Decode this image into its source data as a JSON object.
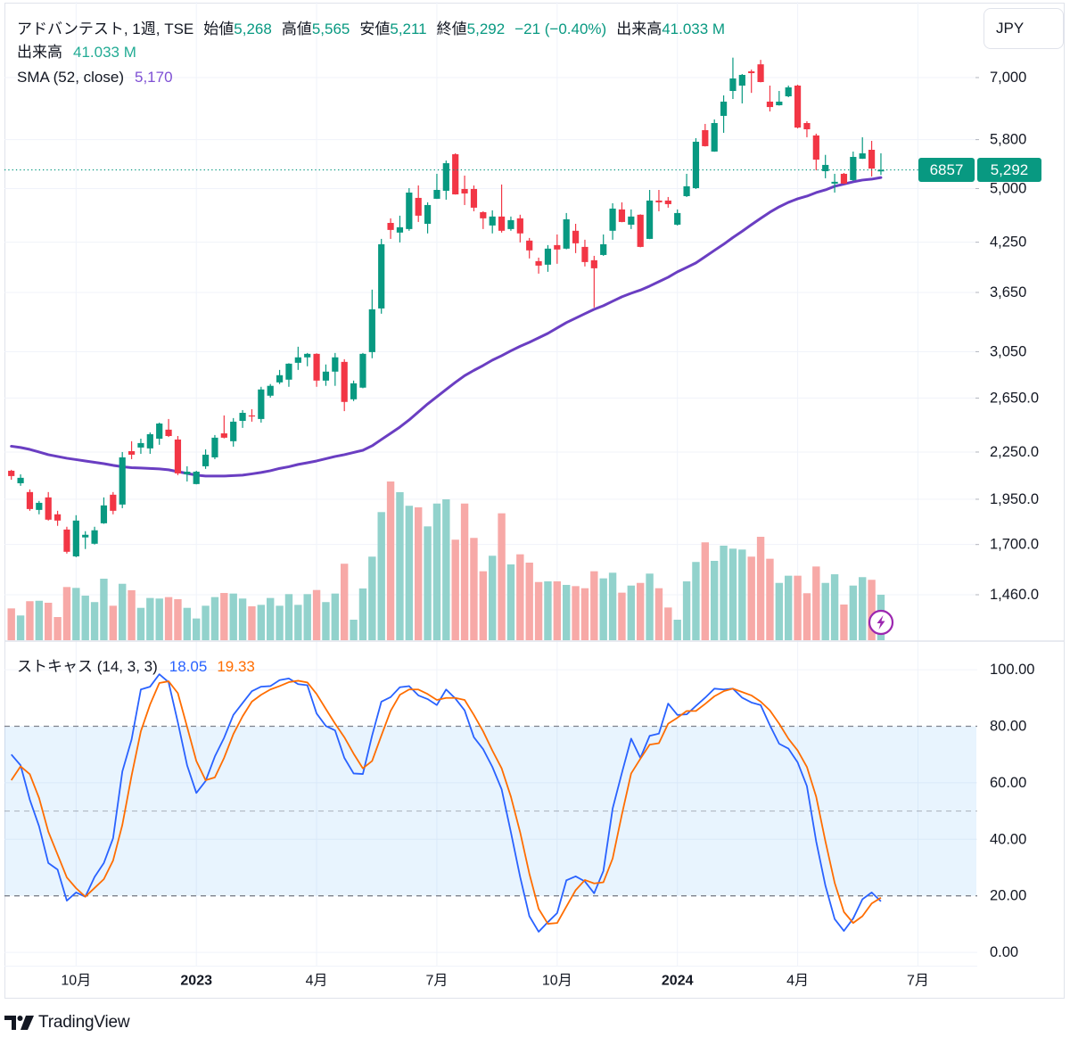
{
  "legend": {
    "title": "アドバンテスト, 1週, TSE",
    "ohlc": [
      {
        "label": "始値",
        "value": "5,268"
      },
      {
        "label": "高値",
        "value": "5,565"
      },
      {
        "label": "安値",
        "value": "5,211"
      },
      {
        "label": "終値",
        "value": "5,292"
      }
    ],
    "change": "−21 (−0.40%)",
    "volume_label": "出来高",
    "volume_value": "41.033 M"
  },
  "volume_legend": {
    "label": "出来高",
    "value": "41.033 M"
  },
  "sma_legend": {
    "label": "SMA (52, close)",
    "value": "5,170"
  },
  "stoch_legend": {
    "label": "ストキャス (14, 3, 3)",
    "k_value": "18.05",
    "d_value": "19.33"
  },
  "currency_button": {
    "label": "JPY"
  },
  "price_badges": {
    "symbol_code": "6857",
    "last_price": "5,292"
  },
  "branding": {
    "name": "TradingView",
    "icon": "tradingview-logo-icon"
  },
  "alert_icon": "lightning-icon",
  "colors": {
    "up": "#089981",
    "down": "#f23645",
    "volume_up": "#92d2cc",
    "volume_down": "#f7a9a7",
    "sma": "#6a3ec2",
    "stoch_k": "#2962ff",
    "stoch_d": "#ff6d00",
    "stoch_band": "#2196f3",
    "grid": "#f0f3fa",
    "band_line": "#787b86"
  },
  "chart_data": [
    {
      "type": "candlestick",
      "title": "アドバンテスト, 1週, TSE",
      "interval": "1週",
      "scale": "log",
      "grid": true,
      "price_ylim": [
        1272,
        8808
      ],
      "volume_ylim": [
        0,
        576
      ],
      "last_close": 5292,
      "y_ticks": [
        {
          "value": 7000,
          "label": "7,000"
        },
        {
          "value": 5800,
          "label": "5,800"
        },
        {
          "value": 5000,
          "label": "5,000"
        },
        {
          "value": 4250,
          "label": "4,250"
        },
        {
          "value": 3650,
          "label": "3,650"
        },
        {
          "value": 3050,
          "label": "3,050"
        },
        {
          "value": 2650,
          "label": "2,650.0"
        },
        {
          "value": 2250,
          "label": "2,250.0"
        },
        {
          "value": 1950,
          "label": "1,950.0"
        },
        {
          "value": 1700,
          "label": "1,700.0"
        },
        {
          "value": 1460,
          "label": "1,460.0"
        }
      ],
      "x_ticks": [
        {
          "label": "10月",
          "bar": 7,
          "bold": false
        },
        {
          "label": "2023",
          "bar": 20,
          "bold": true
        },
        {
          "label": "4月",
          "bar": 33,
          "bold": false
        },
        {
          "label": "7月",
          "bar": 46,
          "bold": false
        },
        {
          "label": "10月",
          "bar": 59,
          "bold": false
        },
        {
          "label": "2024",
          "bar": 72,
          "bold": true
        },
        {
          "label": "4月",
          "bar": 85,
          "bold": false
        },
        {
          "label": "7月",
          "bar": 98,
          "bold": false
        }
      ],
      "ohlc": [
        [
          2126,
          2132,
          2069,
          2092
        ],
        [
          2047,
          2103,
          2031,
          2081
        ],
        [
          1993,
          2009,
          1883,
          1893
        ],
        [
          1888,
          1940,
          1863,
          1929
        ],
        [
          1961,
          1993,
          1828,
          1833
        ],
        [
          1863,
          1883,
          1799,
          1828
        ],
        [
          1779,
          1794,
          1654,
          1663
        ],
        [
          1640,
          1858,
          1636,
          1828
        ],
        [
          1737,
          1770,
          1677,
          1751
        ],
        [
          1704,
          1794,
          1700,
          1775
        ],
        [
          1813,
          1961,
          1810,
          1914
        ],
        [
          1977,
          1993,
          1863,
          1883
        ],
        [
          1919,
          2250,
          1898,
          2214
        ],
        [
          2256,
          2325,
          2202,
          2232
        ],
        [
          2281,
          2343,
          2238,
          2312
        ],
        [
          2275,
          2388,
          2238,
          2375
        ],
        [
          2343,
          2460,
          2300,
          2453
        ],
        [
          2408,
          2487,
          2355,
          2362
        ],
        [
          2337,
          2362,
          2098,
          2109
        ],
        [
          2103,
          2155,
          2058,
          2120
        ],
        [
          2042,
          2126,
          2040,
          2120
        ],
        [
          2155,
          2268,
          2138,
          2232
        ],
        [
          2214,
          2369,
          2202,
          2350
        ],
        [
          2381,
          2514,
          2345,
          2350
        ],
        [
          2325,
          2494,
          2287,
          2467
        ],
        [
          2473,
          2555,
          2421,
          2534
        ],
        [
          2514,
          2562,
          2467,
          2507
        ],
        [
          2487,
          2742,
          2460,
          2720
        ],
        [
          2669,
          2765,
          2654,
          2750
        ],
        [
          2779,
          2886,
          2765,
          2840
        ],
        [
          2802,
          2945,
          2742,
          2941
        ],
        [
          2949,
          3096,
          2886,
          2998
        ],
        [
          2998,
          3038,
          2918,
          3030
        ],
        [
          3030,
          3035,
          2742,
          2794
        ],
        [
          2794,
          2934,
          2750,
          2871
        ],
        [
          2871,
          3038,
          2750,
          2998
        ],
        [
          2957,
          2981,
          2547,
          2619
        ],
        [
          2640,
          2794,
          2626,
          2771
        ],
        [
          2735,
          3038,
          2730,
          3030
        ],
        [
          3046,
          3681,
          2990,
          3468
        ],
        [
          3477,
          4293,
          3422,
          4224
        ],
        [
          4506,
          4569,
          4293,
          4411
        ],
        [
          4376,
          4606,
          4247,
          4447
        ],
        [
          4423,
          5007,
          4400,
          4940
        ],
        [
          4861,
          5048,
          4519,
          4606
        ],
        [
          4494,
          4796,
          4365,
          4757
        ],
        [
          4848,
          5229,
          4845,
          4980
        ],
        [
          4967,
          5444,
          4835,
          5400
        ],
        [
          5549,
          5565,
          4910,
          4913
        ],
        [
          4994,
          5201,
          4757,
          4927
        ],
        [
          4994,
          5048,
          4668,
          4719
        ],
        [
          4655,
          4668,
          4423,
          4569
        ],
        [
          4471,
          4681,
          4365,
          4594
        ],
        [
          4594,
          5062,
          4376,
          4400
        ],
        [
          4423,
          4594,
          4400,
          4544
        ],
        [
          4569,
          4619,
          4247,
          4365
        ],
        [
          4271,
          4305,
          4046,
          4146
        ],
        [
          4013,
          4056,
          3864,
          3959
        ],
        [
          3970,
          4213,
          3885,
          4168
        ],
        [
          4213,
          4351,
          3981,
          4157
        ],
        [
          4168,
          4643,
          4160,
          4556
        ],
        [
          4400,
          4494,
          4112,
          4236
        ],
        [
          4190,
          4282,
          3949,
          4002
        ],
        [
          4024,
          4078,
          3487,
          3927
        ],
        [
          4089,
          4351,
          4078,
          4224
        ],
        [
          4400,
          4783,
          4282,
          4706
        ],
        [
          4694,
          4796,
          4515,
          4519
        ],
        [
          4482,
          4694,
          4423,
          4594
        ],
        [
          4619,
          4625,
          4185,
          4190
        ],
        [
          4293,
          4980,
          4290,
          4822
        ],
        [
          4822,
          4980,
          4668,
          4796
        ],
        [
          4822,
          4874,
          4719,
          4770
        ],
        [
          4482,
          4694,
          4470,
          4643
        ],
        [
          4887,
          5229,
          4874,
          5035
        ],
        [
          5007,
          5826,
          4994,
          5763
        ],
        [
          5969,
          6083,
          5680,
          5686
        ],
        [
          5594,
          6166,
          5590,
          6099
        ],
        [
          6233,
          6632,
          5921,
          6508
        ],
        [
          6722,
          7436,
          6560,
          6981
        ],
        [
          6832,
          7076,
          6473,
          7057
        ],
        [
          7133,
          7172,
          6683,
          7095
        ],
        [
          7287,
          7386,
          6900,
          6906
        ],
        [
          6508,
          6832,
          6317,
          6402
        ],
        [
          6437,
          6722,
          6430,
          6508
        ],
        [
          6614,
          6832,
          6596,
          6795
        ],
        [
          6832,
          6851,
          6000,
          6016
        ],
        [
          6099,
          6133,
          5842,
          5985
        ],
        [
          5874,
          5906,
          5285,
          5459
        ],
        [
          5271,
          5538,
          5159,
          5372
        ],
        [
          5076,
          5229,
          4940,
          5104
        ],
        [
          5229,
          5243,
          5070,
          5076
        ],
        [
          5131,
          5594,
          5117,
          5504
        ],
        [
          5474,
          5842,
          5470,
          5564
        ],
        [
          5624,
          5778,
          5187,
          5313
        ],
        [
          5268,
          5565,
          5211,
          5292
        ]
      ],
      "volume_unit": "M",
      "volume": [
        28.7,
        22.3,
        35.2,
        35.6,
        33.8,
        20.9,
        48.0,
        47.2,
        40.2,
        34.4,
        55.5,
        31.1,
        50.9,
        45.1,
        29.2,
        38.1,
        37.6,
        38.9,
        37.0,
        29.2,
        19.6,
        31.1,
        38.9,
        42.6,
        42.1,
        37.6,
        30.6,
        31.9,
        38.1,
        31.1,
        41.6,
        31.9,
        41.6,
        45.3,
        34.4,
        42.1,
        69.0,
        18.5,
        46.7,
        75.4,
        115.6,
        143.2,
        133.6,
        121.3,
        119.9,
        102.7,
        123.3,
        127.1,
        90.7,
        123.3,
        92.3,
        62.2,
        76.2,
        114.5,
        68.4,
        77.5,
        70.0,
        52.5,
        53.1,
        53.1,
        49.9,
        48.8,
        46.9,
        62.2,
        55.8,
        60.9,
        42.9,
        49.3,
        51.7,
        60.1,
        46.9,
        29.5,
        18.5,
        53.1,
        70.6,
        88.3,
        71.6,
        85.3,
        82.6,
        81.8,
        75.4,
        93.3,
        73.5,
        51.7,
        58.2,
        58.2,
        42.4,
        66.5,
        51.7,
        59.5,
        32.2,
        49.3,
        56.9,
        54.5,
        41.033
      ],
      "sma_52": [
        2290,
        2281,
        2268,
        2250,
        2232,
        2220,
        2208,
        2199,
        2190,
        2181,
        2172,
        2161,
        2152,
        2146,
        2144,
        2141,
        2138,
        2132,
        2120,
        2109,
        2098,
        2092,
        2092,
        2092,
        2095,
        2098,
        2106,
        2115,
        2126,
        2141,
        2152,
        2167,
        2178,
        2190,
        2205,
        2220,
        2232,
        2247,
        2262,
        2293,
        2337,
        2381,
        2427,
        2480,
        2541,
        2603,
        2661,
        2720,
        2779,
        2836,
        2882,
        2925,
        2973,
        3013,
        3058,
        3100,
        3138,
        3181,
        3224,
        3277,
        3331,
        3376,
        3422,
        3468,
        3506,
        3554,
        3602,
        3641,
        3676,
        3721,
        3771,
        3822,
        3885,
        3937,
        3991,
        4067,
        4146,
        4224,
        4311,
        4393,
        4482,
        4569,
        4655,
        4731,
        4796,
        4848,
        4887,
        4940,
        4980,
        5035,
        5069,
        5104,
        5131,
        5145,
        5170
      ]
    },
    {
      "type": "line",
      "title": "ストキャス (14, 3, 3)",
      "ylim": [
        -4.7,
        109.8
      ],
      "grid": true,
      "bands": {
        "upper": 80,
        "middle": 50,
        "lower": 20
      },
      "y_ticks": [
        {
          "value": 100,
          "label": "100.00"
        },
        {
          "value": 80,
          "label": "80.00"
        },
        {
          "value": 60,
          "label": "60.00"
        },
        {
          "value": 40,
          "label": "40.00"
        },
        {
          "value": 20,
          "label": "20.00"
        },
        {
          "value": 0,
          "label": "0.00"
        }
      ],
      "series": [
        {
          "name": "%K",
          "values": [
            70.0,
            66.2,
            54.0,
            44.6,
            31.6,
            29.3,
            18.3,
            21.2,
            19.7,
            26.7,
            31.6,
            40.4,
            64.0,
            75.3,
            93.0,
            94.0,
            98.4,
            95.6,
            81.4,
            66.2,
            56.4,
            60.6,
            69.3,
            75.9,
            84.0,
            88.2,
            92.4,
            94.0,
            94.2,
            96.3,
            96.9,
            94.9,
            94.5,
            84.5,
            80.1,
            78.5,
            68.8,
            63.3,
            63.1,
            76.7,
            88.7,
            90.3,
            93.8,
            94.2,
            90.9,
            89.6,
            87.5,
            93.0,
            89.8,
            85.6,
            76.1,
            71.9,
            65.6,
            57.7,
            42.5,
            26.7,
            12.8,
            7.3,
            10.7,
            13.9,
            25.5,
            26.9,
            25.1,
            20.9,
            28.8,
            50.9,
            63.5,
            75.6,
            68.8,
            76.6,
            77.4,
            88.0,
            84.0,
            84.2,
            87.2,
            90.1,
            93.3,
            93.0,
            93.3,
            90.1,
            88.4,
            87.5,
            80.3,
            73.8,
            72.1,
            67.2,
            58.8,
            39.3,
            23.6,
            11.8,
            7.6,
            12.0,
            18.8,
            21.2,
            18.05
          ]
        },
        {
          "name": "%D",
          "values": [
            60.9,
            65.8,
            63.0,
            54.6,
            42.7,
            34.6,
            26.5,
            22.7,
            19.7,
            22.8,
            25.9,
            32.5,
            45.1,
            62.5,
            78.2,
            87.7,
            95.3,
            95.9,
            91.7,
            79.8,
            67.7,
            60.9,
            61.9,
            68.8,
            77.2,
            83.5,
            88.7,
            91.1,
            93.0,
            94.2,
            95.6,
            96.1,
            95.5,
            91.4,
            86.1,
            80.9,
            76.1,
            70.3,
            65.1,
            67.7,
            76.7,
            85.4,
            91.1,
            93.0,
            93.0,
            91.4,
            89.3,
            90.0,
            90.0,
            89.3,
            84.0,
            78.2,
            71.4,
            65.1,
            55.1,
            42.5,
            27.8,
            15.4,
            10.1,
            10.4,
            16.2,
            22.0,
            25.6,
            24.4,
            24.8,
            33.2,
            48.8,
            63.3,
            68.5,
            73.5,
            74.0,
            80.9,
            83.0,
            85.4,
            85.4,
            87.9,
            90.6,
            92.4,
            93.3,
            92.1,
            90.9,
            88.7,
            85.6,
            80.9,
            75.6,
            71.4,
            65.6,
            55.1,
            39.3,
            24.6,
            14.3,
            10.4,
            12.8,
            17.3,
            19.33
          ]
        }
      ]
    }
  ]
}
